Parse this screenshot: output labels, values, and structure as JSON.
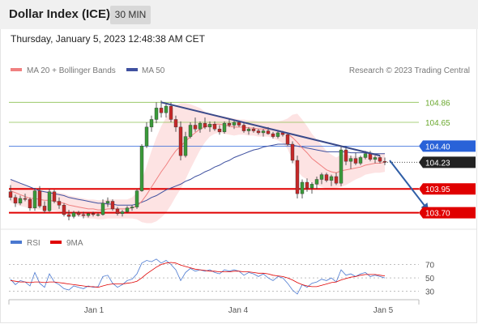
{
  "header": {
    "title": "Dollar Index (ICE)",
    "interval": "30 MIN"
  },
  "timestamp": "Thursday, January 5, 2023 12:48:38 AM CET",
  "copyright": "Research © 2023 Trading Central",
  "colors": {
    "price_badge": "#2962d8",
    "current_badge": "#222222",
    "support_red": "#e00000",
    "resistance_green": "#8cc152",
    "ma50": "#3f51a0",
    "ma20": "#f08080",
    "bollinger_fill": "#fde3e3",
    "rsi_line": "#4a78d0",
    "rsi_ma": "#e00000",
    "arrow": "#2f5ea6"
  },
  "chart_data": [
    {
      "type": "line",
      "subtype": "candlestick",
      "legend": [
        {
          "name": "MA 20 + Bollinger Bands",
          "color": "#f08080"
        },
        {
          "name": "MA 50",
          "color": "#3f51a0"
        }
      ],
      "legend_position": "top-left",
      "x_ticks": [
        "Jan 1",
        "Jan 4",
        "Jan 5"
      ],
      "ylim": [
        103.62,
        105.05
      ],
      "grid": false,
      "levels": {
        "resistance": [
          104.86,
          104.65
        ],
        "pivot": 104.4,
        "current": 104.23,
        "support": [
          103.95,
          103.7
        ]
      },
      "level_labels": [
        "104.86",
        "104.65",
        "104.40",
        "104.23",
        "103.95",
        "103.70"
      ],
      "candles": [
        [
          103.92,
          103.99,
          103.83,
          103.86
        ],
        [
          103.86,
          103.89,
          103.76,
          103.8
        ],
        [
          103.8,
          103.88,
          103.78,
          103.85
        ],
        [
          103.85,
          103.9,
          103.82,
          103.84
        ],
        [
          103.84,
          103.86,
          103.72,
          103.75
        ],
        [
          103.75,
          103.96,
          103.72,
          103.93
        ],
        [
          103.93,
          103.98,
          103.75,
          103.77
        ],
        [
          103.77,
          103.82,
          103.7,
          103.72
        ],
        [
          103.72,
          103.95,
          103.71,
          103.92
        ],
        [
          103.92,
          103.94,
          103.8,
          103.82
        ],
        [
          103.82,
          103.86,
          103.74,
          103.78
        ],
        [
          103.78,
          103.8,
          103.66,
          103.68
        ],
        [
          103.68,
          103.73,
          103.62,
          103.66
        ],
        [
          103.66,
          103.72,
          103.64,
          103.7
        ],
        [
          103.7,
          103.72,
          103.66,
          103.68
        ],
        [
          103.68,
          103.71,
          103.64,
          103.67
        ],
        [
          103.67,
          103.7,
          103.65,
          103.69
        ],
        [
          103.69,
          103.71,
          103.66,
          103.68
        ],
        [
          103.68,
          103.7,
          103.66,
          103.68
        ],
        [
          103.68,
          103.84,
          103.67,
          103.8
        ],
        [
          103.8,
          103.86,
          103.76,
          103.82
        ],
        [
          103.82,
          103.84,
          103.72,
          103.74
        ],
        [
          103.74,
          103.76,
          103.67,
          103.69
        ],
        [
          103.69,
          103.73,
          103.66,
          103.71
        ],
        [
          103.71,
          103.77,
          103.7,
          103.75
        ],
        [
          103.75,
          103.78,
          103.72,
          103.76
        ],
        [
          103.76,
          103.95,
          103.74,
          103.93
        ],
        [
          103.93,
          104.42,
          103.92,
          104.4
        ],
        [
          104.4,
          104.65,
          104.38,
          104.6
        ],
        [
          104.6,
          104.72,
          104.55,
          104.68
        ],
        [
          104.68,
          104.86,
          104.64,
          104.8
        ],
        [
          104.8,
          104.88,
          104.7,
          104.75
        ],
        [
          104.75,
          104.84,
          104.7,
          104.82
        ],
        [
          104.82,
          104.86,
          104.65,
          104.68
        ],
        [
          104.68,
          104.72,
          104.55,
          104.6
        ],
        [
          104.6,
          104.66,
          104.25,
          104.3
        ],
        [
          104.3,
          104.55,
          104.28,
          104.5
        ],
        [
          104.5,
          104.65,
          104.48,
          104.62
        ],
        [
          104.62,
          104.7,
          104.55,
          104.58
        ],
        [
          104.58,
          104.66,
          104.54,
          104.64
        ],
        [
          104.64,
          104.7,
          104.58,
          104.6
        ],
        [
          104.6,
          104.66,
          104.55,
          104.63
        ],
        [
          104.63,
          104.66,
          104.56,
          104.58
        ],
        [
          104.58,
          104.62,
          104.52,
          104.55
        ],
        [
          104.55,
          104.66,
          104.53,
          104.64
        ],
        [
          104.64,
          104.68,
          104.6,
          104.62
        ],
        [
          104.62,
          104.67,
          104.58,
          104.65
        ],
        [
          104.65,
          104.67,
          104.6,
          104.62
        ],
        [
          104.62,
          104.65,
          104.54,
          104.56
        ],
        [
          104.56,
          104.6,
          104.52,
          104.58
        ],
        [
          104.58,
          104.6,
          104.54,
          104.56
        ],
        [
          104.56,
          104.58,
          104.52,
          104.54
        ],
        [
          104.54,
          104.58,
          104.5,
          104.56
        ],
        [
          104.56,
          104.6,
          104.52,
          104.53
        ],
        [
          104.53,
          104.55,
          104.48,
          104.5
        ],
        [
          104.5,
          104.56,
          104.48,
          104.54
        ],
        [
          104.54,
          104.56,
          104.5,
          104.52
        ],
        [
          104.52,
          104.54,
          104.4,
          104.42
        ],
        [
          104.42,
          104.45,
          104.22,
          104.25
        ],
        [
          104.25,
          104.3,
          103.85,
          103.9
        ],
        [
          103.9,
          104.05,
          103.85,
          104.02
        ],
        [
          104.02,
          104.06,
          103.92,
          103.96
        ],
        [
          103.96,
          104.02,
          103.9,
          104.0
        ],
        [
          104.0,
          104.08,
          103.95,
          104.05
        ],
        [
          104.05,
          104.12,
          104.0,
          104.1
        ],
        [
          104.1,
          104.12,
          104.02,
          104.04
        ],
        [
          104.04,
          104.1,
          103.98,
          104.08
        ],
        [
          104.08,
          104.12,
          103.99,
          104.01
        ],
        [
          104.01,
          104.4,
          103.98,
          104.36
        ],
        [
          104.36,
          104.4,
          104.2,
          104.24
        ],
        [
          104.24,
          104.3,
          104.16,
          104.27
        ],
        [
          104.27,
          104.33,
          104.2,
          104.22
        ],
        [
          104.22,
          104.3,
          104.2,
          104.28
        ],
        [
          104.28,
          104.35,
          104.26,
          104.32
        ],
        [
          104.32,
          104.35,
          104.24,
          104.26
        ],
        [
          104.26,
          104.3,
          104.22,
          104.28
        ],
        [
          104.28,
          104.3,
          104.22,
          104.24
        ],
        [
          104.24,
          104.28,
          104.2,
          104.23
        ]
      ],
      "ma20": [
        103.93,
        103.91,
        103.89,
        103.87,
        103.85,
        103.85,
        103.84,
        103.83,
        103.83,
        103.82,
        103.81,
        103.8,
        103.78,
        103.77,
        103.76,
        103.75,
        103.74,
        103.74,
        103.73,
        103.73,
        103.74,
        103.74,
        103.74,
        103.74,
        103.74,
        103.75,
        103.77,
        103.82,
        103.89,
        103.97,
        104.05,
        104.13,
        104.2,
        104.28,
        104.35,
        104.4,
        104.45,
        104.5,
        104.54,
        104.58,
        104.6,
        104.62,
        104.63,
        104.63,
        104.62,
        104.61,
        104.6,
        104.6,
        104.6,
        104.59,
        104.59,
        104.58,
        104.58,
        104.58,
        104.57,
        104.56,
        104.55,
        104.53,
        104.49,
        104.44,
        104.38,
        104.33,
        104.27,
        104.23,
        104.19,
        104.15,
        104.13,
        104.12,
        104.14,
        104.15,
        104.16,
        104.17,
        104.18,
        104.2,
        104.21,
        104.22,
        104.22,
        104.23
      ],
      "ma50": [
        104.05,
        104.03,
        104.01,
        103.99,
        103.97,
        103.95,
        103.93,
        103.92,
        103.91,
        103.9,
        103.89,
        103.88,
        103.86,
        103.85,
        103.84,
        103.83,
        103.82,
        103.81,
        103.8,
        103.8,
        103.79,
        103.79,
        103.78,
        103.78,
        103.78,
        103.78,
        103.79,
        103.81,
        103.83,
        103.86,
        103.88,
        103.91,
        103.94,
        103.96,
        103.98,
        104.0,
        104.03,
        104.05,
        104.08,
        104.1,
        104.13,
        104.15,
        104.18,
        104.2,
        104.23,
        104.25,
        104.28,
        104.3,
        104.32,
        104.34,
        104.36,
        104.37,
        104.39,
        104.4,
        104.41,
        104.42,
        104.42,
        104.42,
        104.41,
        104.4,
        104.39,
        104.38,
        104.37,
        104.36,
        104.35,
        104.34,
        104.34,
        104.34,
        104.34,
        104.34,
        104.33,
        104.33,
        104.33,
        104.33,
        104.32,
        104.32,
        104.32,
        104.32
      ],
      "bollinger_width": [
        0.12,
        0.12,
        0.12,
        0.11,
        0.11,
        0.11,
        0.11,
        0.1,
        0.1,
        0.1,
        0.1,
        0.1,
        0.1,
        0.1,
        0.1,
        0.1,
        0.1,
        0.1,
        0.1,
        0.1,
        0.1,
        0.1,
        0.1,
        0.1,
        0.1,
        0.11,
        0.14,
        0.22,
        0.3,
        0.38,
        0.44,
        0.48,
        0.5,
        0.5,
        0.48,
        0.45,
        0.4,
        0.34,
        0.28,
        0.22,
        0.16,
        0.12,
        0.1,
        0.09,
        0.09,
        0.09,
        0.09,
        0.08,
        0.08,
        0.08,
        0.08,
        0.08,
        0.08,
        0.08,
        0.09,
        0.1,
        0.12,
        0.16,
        0.24,
        0.3,
        0.3,
        0.28,
        0.26,
        0.24,
        0.22,
        0.2,
        0.18,
        0.16,
        0.17,
        0.16,
        0.14,
        0.12,
        0.11,
        0.1,
        0.1,
        0.1,
        0.1,
        0.1
      ],
      "trend_lines": [
        {
          "kind": "resistance",
          "from": [
            31,
            104.86
          ],
          "to": [
            76,
            104.3
          ]
        },
        {
          "kind": "projection",
          "from": [
            78,
            104.25
          ],
          "to": [
            86,
            103.72
          ]
        }
      ]
    },
    {
      "type": "line",
      "legend": [
        {
          "name": "RSI",
          "color": "#4a78d0"
        },
        {
          "name": "9MA",
          "color": "#e00000"
        }
      ],
      "legend_position": "top-left",
      "ylim": [
        20,
        85
      ],
      "y_ticks": [
        70,
        50,
        30
      ],
      "grid": true,
      "rsi": [
        48,
        40,
        46,
        44,
        38,
        58,
        42,
        36,
        56,
        44,
        40,
        34,
        32,
        38,
        36,
        34,
        38,
        36,
        37,
        52,
        54,
        42,
        36,
        40,
        46,
        48,
        56,
        72,
        76,
        74,
        78,
        72,
        76,
        70,
        62,
        46,
        58,
        64,
        60,
        62,
        60,
        62,
        58,
        56,
        62,
        60,
        62,
        60,
        54,
        58,
        56,
        52,
        56,
        50,
        46,
        52,
        50,
        42,
        32,
        26,
        40,
        36,
        42,
        44,
        48,
        46,
        50,
        44,
        62,
        54,
        56,
        52,
        56,
        58,
        52,
        54,
        52,
        50
      ],
      "rsi_ma": [
        46,
        45,
        44,
        44,
        43,
        44,
        44,
        43,
        44,
        44,
        43,
        42,
        41,
        40,
        39,
        38,
        37,
        37,
        36,
        38,
        40,
        41,
        41,
        41,
        42,
        43,
        45,
        50,
        56,
        61,
        66,
        70,
        72,
        73,
        72,
        69,
        67,
        65,
        63,
        62,
        61,
        60,
        60,
        59,
        59,
        59,
        60,
        60,
        59,
        59,
        58,
        57,
        57,
        56,
        54,
        53,
        52,
        50,
        47,
        43,
        40,
        38,
        37,
        37,
        39,
        41,
        43,
        44,
        47,
        49,
        51,
        52,
        54,
        55,
        55,
        55,
        54,
        53
      ]
    }
  ]
}
